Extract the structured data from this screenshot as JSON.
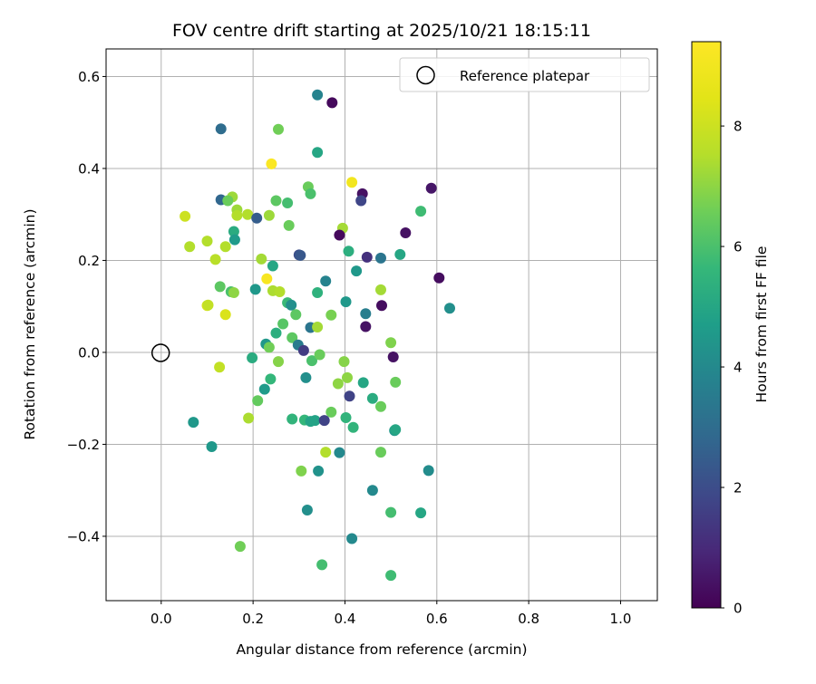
{
  "chart_data": {
    "type": "scatter",
    "title": "FOV centre drift starting at 2025/10/21 18:15:11",
    "xlabel": "Angular distance from reference (arcmin)",
    "ylabel": "Rotation from reference (arcmin)",
    "xlim": [
      -0.12,
      1.08
    ],
    "ylim": [
      -0.54,
      0.66
    ],
    "xticks": [
      0.0,
      0.2,
      0.4,
      0.6,
      0.8,
      1.0
    ],
    "xtick_labels": [
      "0.0",
      "0.2",
      "0.4",
      "0.6",
      "0.8",
      "1.0"
    ],
    "yticks": [
      -0.4,
      -0.2,
      0.0,
      0.2,
      0.4,
      0.6
    ],
    "ytick_labels": [
      "−0.4",
      "−0.2",
      "0.0",
      "0.2",
      "0.4",
      "0.6"
    ],
    "grid": true,
    "legend": {
      "position": "top-right",
      "label": "Reference platepar"
    },
    "reference": {
      "x": 0.0,
      "y": 0.0
    },
    "colorbar": {
      "label": "Hours from first FF file",
      "colormap": "viridis",
      "min": 0,
      "max": 9.4,
      "ticks": [
        0,
        2,
        4,
        6,
        8
      ],
      "tick_labels": [
        "0",
        "2",
        "4",
        "6",
        "8"
      ]
    },
    "points": [
      [
        0.372,
        0.543,
        0.2
      ],
      [
        0.34,
        0.56,
        3.8
      ],
      [
        0.13,
        0.486,
        3.0
      ],
      [
        0.255,
        0.485,
        6.6
      ],
      [
        0.34,
        0.435,
        5.0
      ],
      [
        0.24,
        0.41,
        9.3
      ],
      [
        0.415,
        0.37,
        9.0
      ],
      [
        0.32,
        0.36,
        6.5
      ],
      [
        0.325,
        0.345,
        6.0
      ],
      [
        0.438,
        0.345,
        0.4
      ],
      [
        0.588,
        0.357,
        0.5
      ],
      [
        0.155,
        0.338,
        7.2
      ],
      [
        0.13,
        0.332,
        2.8
      ],
      [
        0.145,
        0.33,
        6.5
      ],
      [
        0.25,
        0.33,
        6.3
      ],
      [
        0.275,
        0.325,
        5.9
      ],
      [
        0.435,
        0.33,
        1.8
      ],
      [
        0.565,
        0.307,
        5.8
      ],
      [
        0.165,
        0.31,
        7.2
      ],
      [
        0.052,
        0.296,
        8.0
      ],
      [
        0.165,
        0.298,
        7.5
      ],
      [
        0.188,
        0.3,
        7.5
      ],
      [
        0.235,
        0.298,
        7.2
      ],
      [
        0.208,
        0.292,
        2.5
      ],
      [
        0.395,
        0.27,
        7.3
      ],
      [
        0.278,
        0.276,
        6.5
      ],
      [
        0.158,
        0.263,
        5.2
      ],
      [
        0.388,
        0.255,
        0.2
      ],
      [
        0.16,
        0.245,
        4.6
      ],
      [
        0.1,
        0.242,
        7.5
      ],
      [
        0.062,
        0.23,
        7.5
      ],
      [
        0.14,
        0.23,
        7.5
      ],
      [
        0.532,
        0.26,
        0.4
      ],
      [
        0.408,
        0.22,
        5.3
      ],
      [
        0.118,
        0.202,
        7.6
      ],
      [
        0.218,
        0.203,
        7.3
      ],
      [
        0.3,
        0.212,
        2.0
      ],
      [
        0.303,
        0.211,
        2.3
      ],
      [
        0.448,
        0.207,
        1.2
      ],
      [
        0.478,
        0.205,
        3.3
      ],
      [
        0.52,
        0.213,
        5.0
      ],
      [
        0.243,
        0.188,
        5.0
      ],
      [
        0.425,
        0.177,
        4.5
      ],
      [
        0.605,
        0.162,
        0.3
      ],
      [
        0.23,
        0.16,
        9.2
      ],
      [
        0.358,
        0.155,
        3.8
      ],
      [
        0.128,
        0.143,
        6.3
      ],
      [
        0.205,
        0.137,
        4.5
      ],
      [
        0.152,
        0.132,
        6.0
      ],
      [
        0.158,
        0.13,
        7.0
      ],
      [
        0.243,
        0.134,
        7.4
      ],
      [
        0.258,
        0.132,
        7.5
      ],
      [
        0.478,
        0.136,
        7.3
      ],
      [
        0.34,
        0.13,
        5.4
      ],
      [
        0.275,
        0.108,
        5.7
      ],
      [
        0.283,
        0.103,
        4.2
      ],
      [
        0.402,
        0.11,
        4.5
      ],
      [
        0.1,
        0.102,
        8.2
      ],
      [
        0.102,
        0.103,
        7.8
      ],
      [
        0.628,
        0.096,
        4.2
      ],
      [
        0.48,
        0.102,
        0.3
      ],
      [
        0.445,
        0.084,
        3.6
      ],
      [
        0.14,
        0.082,
        8.3
      ],
      [
        0.293,
        0.082,
        6.3
      ],
      [
        0.37,
        0.081,
        6.7
      ],
      [
        0.265,
        0.062,
        6.2
      ],
      [
        0.325,
        0.054,
        3.3
      ],
      [
        0.34,
        0.055,
        7.3
      ],
      [
        0.445,
        0.056,
        0.4
      ],
      [
        0.25,
        0.042,
        5.3
      ],
      [
        0.285,
        0.032,
        6.3
      ],
      [
        0.228,
        0.018,
        4.5
      ],
      [
        0.235,
        0.011,
        6.6
      ],
      [
        0.298,
        0.016,
        3.5
      ],
      [
        0.31,
        0.004,
        1.5
      ],
      [
        0.5,
        0.021,
        6.8
      ],
      [
        0.198,
        -0.012,
        5.2
      ],
      [
        0.255,
        -0.02,
        6.9
      ],
      [
        0.328,
        -0.018,
        6.0
      ],
      [
        0.345,
        -0.005,
        6.5
      ],
      [
        0.398,
        -0.02,
        6.9
      ],
      [
        0.505,
        -0.01,
        0.4
      ],
      [
        0.127,
        -0.032,
        7.8
      ],
      [
        0.315,
        -0.055,
        4.2
      ],
      [
        0.238,
        -0.058,
        5.6
      ],
      [
        0.405,
        -0.055,
        7.0
      ],
      [
        0.225,
        -0.08,
        4.6
      ],
      [
        0.385,
        -0.068,
        7.0
      ],
      [
        0.44,
        -0.066,
        5.0
      ],
      [
        0.51,
        -0.065,
        6.5
      ],
      [
        0.41,
        -0.095,
        1.7
      ],
      [
        0.21,
        -0.105,
        6.4
      ],
      [
        0.46,
        -0.1,
        5.2
      ],
      [
        0.478,
        -0.118,
        6.5
      ],
      [
        0.37,
        -0.13,
        6.5
      ],
      [
        0.285,
        -0.145,
        5.5
      ],
      [
        0.312,
        -0.147,
        5.6
      ],
      [
        0.325,
        -0.15,
        4.9
      ],
      [
        0.335,
        -0.148,
        4.9
      ],
      [
        0.355,
        -0.148,
        1.7
      ],
      [
        0.07,
        -0.152,
        4.5
      ],
      [
        0.19,
        -0.143,
        7.4
      ],
      [
        0.402,
        -0.142,
        5.5
      ],
      [
        0.418,
        -0.163,
        5.5
      ],
      [
        0.508,
        -0.17,
        4.5
      ],
      [
        0.51,
        -0.168,
        5.0
      ],
      [
        0.11,
        -0.205,
        4.5
      ],
      [
        0.358,
        -0.217,
        7.5
      ],
      [
        0.388,
        -0.218,
        4.0
      ],
      [
        0.478,
        -0.217,
        6.5
      ],
      [
        0.305,
        -0.258,
        6.8
      ],
      [
        0.342,
        -0.258,
        4.3
      ],
      [
        0.582,
        -0.257,
        4.1
      ],
      [
        0.46,
        -0.3,
        4.0
      ],
      [
        0.318,
        -0.343,
        4.2
      ],
      [
        0.5,
        -0.348,
        5.9
      ],
      [
        0.565,
        -0.349,
        5.0
      ],
      [
        0.415,
        -0.405,
        4.0
      ],
      [
        0.172,
        -0.422,
        6.6
      ],
      [
        0.35,
        -0.462,
        5.9
      ],
      [
        0.5,
        -0.485,
        5.8
      ]
    ]
  }
}
